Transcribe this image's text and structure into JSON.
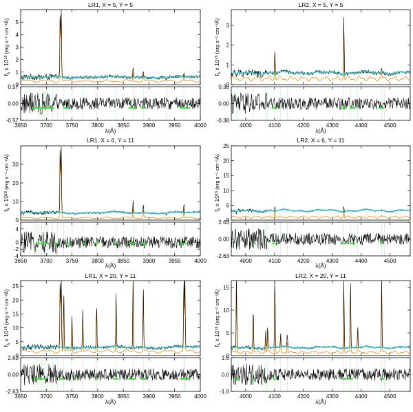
{
  "colors": {
    "data": "#000000",
    "model": "#f28500",
    "continuum": "#30c5d0",
    "mask": "#2ee02e",
    "lines": "#7ddc7d"
  },
  "chart_data": [
    {
      "type": "line",
      "title": "LR1, X =  5, Y =  5",
      "ylabel": "f",
      "ylabel_subscript": "λ",
      "ylabel_rest": " x 10",
      "ylabel_exponent": "16",
      "ylabel_units": " (erg s⁻¹ cm⁻²Å)",
      "xlabel": "λ(Å)",
      "xlim": [
        3650,
        4000
      ],
      "xticks": [
        "3650",
        "3700",
        "3750",
        "3800",
        "3850",
        "3900",
        "3950",
        "4000"
      ],
      "ylim": [
        0,
        6
      ],
      "yticks": [
        "0",
        "1",
        "2",
        "3",
        "4",
        "5"
      ],
      "resid_ylim": [
        -0.57,
        0.57
      ],
      "resid_yticks": [
        "0.57",
        "0.00",
        "-0.57"
      ],
      "series": [],
      "continuum_level": 0.6,
      "model_level": 0.28,
      "noise": 0.12,
      "emission": [
        [
          3727,
          5.8
        ],
        [
          3729,
          5.6
        ],
        [
          3869,
          0.7
        ],
        [
          3889,
          0.45
        ],
        [
          3968,
          0.6
        ]
      ],
      "absorption": [
        3934,
        3968
      ],
      "mask_segments": [
        [
          3672,
          3715
        ],
        [
          3733,
          3745
        ],
        [
          3860,
          3875
        ],
        [
          3885,
          3895
        ],
        [
          3960,
          3980
        ]
      ],
      "line_positions": [
        3686,
        3692,
        3697,
        3703,
        3712,
        3722,
        3734,
        3750,
        3771,
        3798,
        3836,
        3869,
        3889,
        3934,
        3968
      ]
    },
    {
      "type": "line",
      "title": "LR2, X =  5, Y =  5",
      "ylabel": "f",
      "ylabel_subscript": "λ",
      "ylabel_rest": " x 10",
      "ylabel_exponent": "16",
      "ylabel_units": " (erg s⁻¹ cm⁻²Å)",
      "xlabel": "λ(Å)",
      "xlim": [
        3950,
        4570
      ],
      "xticks": [
        "4000",
        "4100",
        "4200",
        "4300",
        "4400",
        "4500"
      ],
      "ylim": [
        0,
        3.8
      ],
      "yticks": [
        "0",
        "1",
        "2",
        "3"
      ],
      "resid_ylim": [
        -0.38,
        0.38
      ],
      "resid_yticks": [
        "0.38",
        "0.00",
        "-0.38"
      ],
      "series": [],
      "continuum_level": 0.6,
      "model_level": 0.3,
      "noise": 0.09,
      "emission": [
        [
          4101,
          1.3
        ],
        [
          4340,
          3.2
        ],
        [
          4471,
          0.3
        ]
      ],
      "absorption": [
        3968,
        4101,
        4340
      ],
      "mask_segments": [
        [
          4090,
          4110
        ],
        [
          4330,
          4350
        ],
        [
          4360,
          4380
        ],
        [
          4460,
          4480
        ]
      ],
      "line_positions": [
        3970,
        4026,
        4069,
        4076,
        4101,
        4121,
        4144,
        4340,
        4363,
        4388,
        4471,
        4481
      ]
    },
    {
      "type": "line",
      "title": "LR1, X =  6, Y = 11",
      "ylabel": "f",
      "ylabel_subscript": "λ",
      "ylabel_rest": " x 10",
      "ylabel_exponent": "16",
      "ylabel_units": " (erg s⁻¹ cm⁻²Å)",
      "xlabel": "λ(Å)",
      "xlim": [
        3650,
        4000
      ],
      "xticks": [
        "3650",
        "3700",
        "3750",
        "3800",
        "3850",
        "3900",
        "3950",
        "4000"
      ],
      "ylim": [
        0,
        40
      ],
      "yticks": [
        "0",
        "10",
        "20",
        "30"
      ],
      "resid_ylim": [
        -4,
        6
      ],
      "resid_yticks": [
        "4",
        "0",
        "-2",
        "-4"
      ],
      "resid_ytick_values": [
        4,
        0,
        -2,
        -4
      ],
      "series": [],
      "continuum_level": 4.0,
      "model_level": 1.2,
      "noise": 0.5,
      "emission": [
        [
          3727,
          39
        ],
        [
          3729,
          37
        ],
        [
          3869,
          7
        ],
        [
          3889,
          4
        ],
        [
          3968,
          6
        ]
      ],
      "absorption": [
        3934,
        3968
      ],
      "mask_segments": [
        [
          3680,
          3705
        ],
        [
          3715,
          3725
        ],
        [
          3740,
          3750
        ],
        [
          3770,
          3775
        ],
        [
          3795,
          3802
        ],
        [
          3832,
          3840
        ],
        [
          3860,
          3875
        ],
        [
          3885,
          3895
        ],
        [
          3960,
          3975
        ]
      ],
      "line_positions": [
        3676,
        3682,
        3686,
        3691,
        3697,
        3703,
        3712,
        3722,
        3734,
        3750,
        3771,
        3798,
        3836,
        3869,
        3889,
        3934,
        3968,
        3970
      ]
    },
    {
      "type": "line",
      "title": "LR2, X =  6, Y = 11",
      "ylabel": "f",
      "ylabel_subscript": "λ",
      "ylabel_rest": " x 10",
      "ylabel_exponent": "16",
      "ylabel_units": " (erg s⁻¹ cm⁻²Å)",
      "xlabel": "λ(Å)",
      "xlim": [
        3950,
        4570
      ],
      "xticks": [
        "4000",
        "4100",
        "4200",
        "4300",
        "4400",
        "4500"
      ],
      "ylim": [
        0,
        25
      ],
      "yticks": [
        "0",
        "5",
        "10",
        "15",
        "20",
        "25"
      ],
      "resid_ylim": [
        -2.63,
        2.63
      ],
      "resid_yticks": [
        "2.63",
        "0.00",
        "-2.63"
      ],
      "series": [],
      "continuum_level": 3.2,
      "model_level": 1.0,
      "noise": 0.25,
      "emission": [
        [
          4101,
          2.6
        ],
        [
          4340,
          2.8
        ],
        [
          4471,
          0.5
        ]
      ],
      "absorption": [
        3968,
        4101,
        4340
      ],
      "mask_segments": [
        [
          4025,
          4035
        ],
        [
          4090,
          4110
        ],
        [
          4330,
          4350
        ],
        [
          4360,
          4380
        ],
        [
          4465,
          4480
        ]
      ],
      "line_positions": [
        3970,
        4026,
        4069,
        4076,
        4101,
        4121,
        4144,
        4340,
        4363,
        4388,
        4471,
        4481
      ]
    },
    {
      "type": "line",
      "title": "LR1, X = 20, Y = 11",
      "ylabel": "f",
      "ylabel_subscript": "λ",
      "ylabel_rest": " x 10",
      "ylabel_exponent": "16",
      "ylabel_units": " (erg s⁻¹ cm⁻²Å)",
      "xlabel": "λ(Å)",
      "xlim": [
        3650,
        4000
      ],
      "xticks": [
        "3650",
        "3700",
        "3750",
        "3800",
        "3850",
        "3900",
        "3950",
        "4000"
      ],
      "ylim": [
        0,
        27
      ],
      "yticks": [
        "0",
        "5",
        "10",
        "15",
        "20",
        "25"
      ],
      "resid_ylim": [
        -2.63,
        2.63
      ],
      "resid_yticks": [
        "2.63",
        "0.00",
        "-2.63"
      ],
      "series": [],
      "continuum_level": 3.0,
      "model_level": 1.5,
      "noise": 0.5,
      "emission": [
        [
          3727,
          27
        ],
        [
          3729,
          26
        ],
        [
          3734,
          20
        ],
        [
          3750,
          12
        ],
        [
          3771,
          14
        ],
        [
          3798,
          17
        ],
        [
          3836,
          20
        ],
        [
          3869,
          27
        ],
        [
          3889,
          22
        ],
        [
          3968,
          27
        ],
        [
          3970,
          26
        ]
      ],
      "absorption": [],
      "mask_segments": [
        [
          3675,
          3700
        ],
        [
          3725,
          3735
        ],
        [
          3760,
          3765
        ],
        [
          3795,
          3800
        ],
        [
          3832,
          3840
        ],
        [
          3860,
          3875
        ],
        [
          3885,
          3895
        ],
        [
          3960,
          3980
        ]
      ],
      "line_positions": [
        3676,
        3682,
        3686,
        3691,
        3697,
        3703,
        3712,
        3722,
        3734,
        3750,
        3771,
        3798,
        3836,
        3869,
        3889,
        3968,
        3970
      ]
    },
    {
      "type": "line",
      "title": "LR2, X = 20, Y = 11",
      "ylabel": "f",
      "ylabel_subscript": "λ",
      "ylabel_rest": " x 10",
      "ylabel_exponent": "16",
      "ylabel_units": " (erg s⁻¹ cm⁻²Å)",
      "xlabel": "λ(Å)",
      "xlim": [
        3950,
        4570
      ],
      "xticks": [
        "4000",
        "4100",
        "4200",
        "4300",
        "4400",
        "4500"
      ],
      "ylim": [
        0,
        16.5
      ],
      "yticks": [
        "0",
        "5",
        "10",
        "15"
      ],
      "resid_ylim": [
        -1.6,
        1.6
      ],
      "resid_yticks": [
        "1.6",
        "0.0",
        "-1.6"
      ],
      "series": [],
      "continuum_level": 1.8,
      "model_level": 0.7,
      "noise": 0.2,
      "emission": [
        [
          3968,
          16
        ],
        [
          4026,
          9
        ],
        [
          4069,
          4
        ],
        [
          4076,
          5
        ],
        [
          4101,
          16
        ],
        [
          4121,
          3
        ],
        [
          4144,
          3
        ],
        [
          4340,
          16
        ],
        [
          4363,
          15
        ],
        [
          4388,
          5
        ],
        [
          4471,
          16
        ]
      ],
      "absorption": [],
      "mask_segments": [
        [
          3965,
          3980
        ],
        [
          4020,
          4032
        ],
        [
          4095,
          4108
        ],
        [
          4335,
          4350
        ],
        [
          4355,
          4372
        ],
        [
          4465,
          4480
        ]
      ],
      "line_positions": [
        3970,
        4026,
        4069,
        4076,
        4101,
        4121,
        4144,
        4340,
        4363,
        4388,
        4471,
        4481
      ]
    }
  ]
}
